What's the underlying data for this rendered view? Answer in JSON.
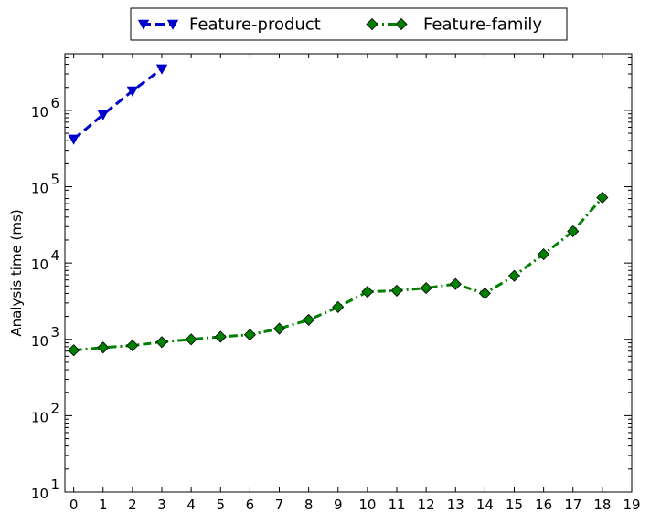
{
  "chart_data": {
    "type": "line",
    "title": "",
    "xlabel": "",
    "ylabel": "Analysis time (ms)",
    "xlim": [
      -0.3,
      19
    ],
    "ylim": [
      10,
      5500000
    ],
    "y_scale": "log",
    "grid": false,
    "legend_position": "top-center",
    "x_ticks": [
      "0",
      "1",
      "2",
      "3",
      "4",
      "5",
      "6",
      "7",
      "8",
      "9",
      "10",
      "11",
      "12",
      "13",
      "14",
      "15",
      "16",
      "17",
      "18",
      "19"
    ],
    "y_ticks": [
      {
        "value": 10,
        "base": "10",
        "exp": "1"
      },
      {
        "value": 100,
        "base": "10",
        "exp": "2"
      },
      {
        "value": 1000,
        "base": "10",
        "exp": "3"
      },
      {
        "value": 10000,
        "base": "10",
        "exp": "4"
      },
      {
        "value": 100000,
        "base": "10",
        "exp": "5"
      },
      {
        "value": 1000000,
        "base": "10",
        "exp": "6"
      }
    ],
    "series": [
      {
        "name": "Feature-product",
        "color": "#0000cc",
        "line_style": "dashed",
        "marker": "triangle-down",
        "x": [
          0,
          1,
          2,
          3
        ],
        "values": [
          420000,
          880000,
          1800000,
          3500000
        ]
      },
      {
        "name": "Feature-family",
        "color": "#008000",
        "line_style": "dash-dot",
        "marker": "diamond",
        "x": [
          0,
          1,
          2,
          3,
          4,
          5,
          6,
          7,
          8,
          9,
          10,
          11,
          12,
          13,
          14,
          15,
          16,
          17,
          18
        ],
        "values": [
          720,
          780,
          830,
          920,
          1000,
          1080,
          1150,
          1380,
          1800,
          2650,
          4200,
          4350,
          4700,
          5300,
          4000,
          6800,
          13000,
          26000,
          72000
        ]
      }
    ]
  }
}
